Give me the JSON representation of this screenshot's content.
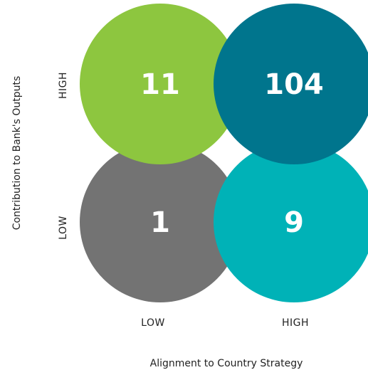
{
  "chart_data": {
    "type": "bubble-matrix",
    "xlabel": "Alignment to Country Strategy",
    "ylabel": "Contribution to Bank's Outputs",
    "x_categories": [
      "LOW",
      "HIGH"
    ],
    "y_categories": [
      "LOW",
      "HIGH"
    ],
    "cells": [
      {
        "x": "LOW",
        "y": "HIGH",
        "value": 11,
        "color": "#8dc63f"
      },
      {
        "x": "HIGH",
        "y": "HIGH",
        "value": 104,
        "color": "#00758d"
      },
      {
        "x": "LOW",
        "y": "LOW",
        "value": 1,
        "color": "#737373"
      },
      {
        "x": "HIGH",
        "y": "LOW",
        "value": 9,
        "color": "#00b2b7"
      }
    ]
  }
}
